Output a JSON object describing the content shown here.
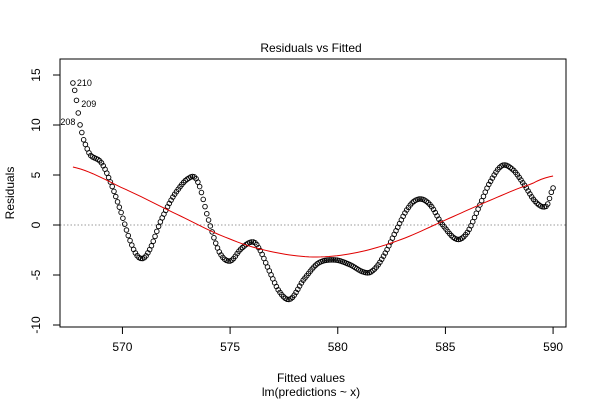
{
  "chart_data": {
    "type": "scatter",
    "title": "Residuals vs Fitted",
    "xlabel": "Fitted values",
    "subtitle": "lm(predictions ~ x)",
    "ylabel": "Residuals",
    "xlim": [
      567.1,
      590.6
    ],
    "ylim": [
      -10.2,
      16.6
    ],
    "xticks": [
      570,
      575,
      580,
      585,
      590
    ],
    "yticks": [
      -10,
      -5,
      0,
      5,
      10,
      15
    ],
    "grid": false,
    "reference_line": 0,
    "point_labels": [
      {
        "text": "210",
        "x": 567.7,
        "y": 14.2
      },
      {
        "text": "209",
        "x": 567.9,
        "y": 12.1
      },
      {
        "text": "208",
        "x": 568.0,
        "y": 10.3
      }
    ],
    "residual_curve": {
      "x_start": 567.7,
      "x_end": 590.0,
      "knots_x": [
        567.7,
        567.9,
        568.0,
        568.2,
        568.5,
        569.0,
        569.4,
        569.9,
        570.4,
        570.8,
        571.2,
        571.8,
        572.4,
        573.1,
        573.5,
        574.0,
        574.5,
        575.0,
        575.5,
        576.0,
        576.3,
        576.8,
        577.3,
        577.8,
        578.4,
        579.1,
        579.9,
        580.6,
        581.2,
        581.6,
        582.1,
        582.7,
        583.3,
        583.8,
        584.3,
        584.8,
        585.5,
        586.0,
        586.5,
        587.0,
        587.6,
        588.1,
        588.6,
        589.2,
        589.7,
        590.0
      ],
      "knots_y": [
        14.2,
        12.1,
        10.3,
        8.5,
        7.0,
        6.3,
        4.5,
        1.5,
        -1.8,
        -3.3,
        -2.7,
        0.5,
        3.0,
        4.7,
        4.3,
        0.5,
        -2.7,
        -3.6,
        -2.4,
        -1.7,
        -2.2,
        -4.5,
        -6.7,
        -7.4,
        -5.5,
        -3.8,
        -3.5,
        -4.0,
        -4.7,
        -4.6,
        -3.2,
        -0.6,
        1.8,
        2.6,
        2.0,
        0.2,
        -1.4,
        -0.8,
        1.5,
        4.0,
        5.9,
        5.6,
        4.2,
        2.3,
        1.9,
        3.7
      ],
      "n_points": 270
    },
    "smoother": {
      "color": "#e00000",
      "knots_x": [
        567.7,
        570.0,
        572.5,
        575.0,
        577.0,
        579.0,
        581.0,
        583.0,
        585.0,
        587.0,
        589.0,
        590.0
      ],
      "knots_y": [
        5.8,
        3.7,
        1.1,
        -1.4,
        -2.7,
        -3.2,
        -2.7,
        -1.4,
        0.5,
        2.4,
        4.1,
        4.9
      ]
    },
    "point_color": "#000000",
    "reference_color": "#9a9a9a"
  }
}
